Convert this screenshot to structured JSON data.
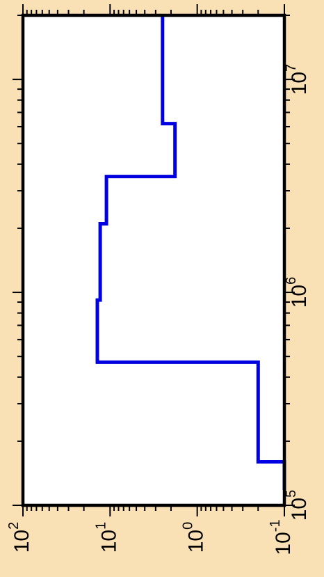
{
  "theme": {
    "background": "#FAE0B5",
    "plot_bg": "#FFFFFF",
    "axis_color": "#000000",
    "series_color": "#0000E0"
  },
  "chart_data": {
    "type": "line",
    "orientation": "rotated-90",
    "step": true,
    "title": "",
    "xlabel": "",
    "ylabel": "",
    "x_scale": "log",
    "y_scale": "log",
    "xlim": [
      100000,
      20000000
    ],
    "ylim": [
      0.1,
      100
    ],
    "x_ticks": [
      {
        "value": 100000,
        "base": "10",
        "exp": "5"
      },
      {
        "value": 1000000,
        "base": "10",
        "exp": "6"
      },
      {
        "value": 10000000,
        "base": "10",
        "exp": "7"
      }
    ],
    "y_ticks": [
      {
        "value": 100,
        "base": "10",
        "exp": "2"
      },
      {
        "value": 10,
        "base": "10",
        "exp": "1"
      },
      {
        "value": 1,
        "base": "10",
        "exp": "0"
      },
      {
        "value": 0.1,
        "base": "10",
        "exp": "-1"
      }
    ],
    "grid": false,
    "series": [
      {
        "x": [
          118000,
          160000,
          160000,
          470000,
          470000,
          920000,
          920000,
          2100000,
          2100000,
          3500000,
          3500000,
          6200000,
          6200000,
          20000000
        ],
        "y": [
          0.1,
          0.1,
          0.2,
          0.2,
          14,
          14,
          13,
          13,
          11,
          11,
          1.8,
          1.8,
          2.5,
          2.5
        ]
      }
    ]
  }
}
